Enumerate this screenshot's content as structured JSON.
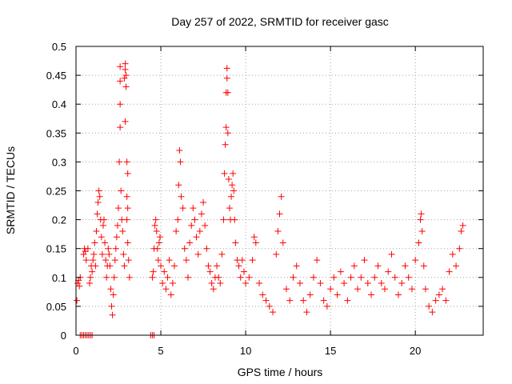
{
  "chart_data": {
    "type": "scatter",
    "title": "Day 257 of 2022, SRMTID for receiver gasc",
    "xlabel": "GPS time / hours",
    "ylabel": "SRMTID / TECUs",
    "xlim": [
      0,
      24
    ],
    "ylim": [
      0,
      0.5
    ],
    "xticks": [
      0,
      5,
      10,
      15,
      20
    ],
    "xtick_labels": [
      "0",
      "5",
      "10",
      "15",
      "20"
    ],
    "yticks": [
      0,
      0.05,
      0.1,
      0.15,
      0.2,
      0.25,
      0.3,
      0.35,
      0.4,
      0.45,
      0.5
    ],
    "ytick_labels": [
      "0",
      "0.05",
      "0.1",
      "0.15",
      "0.2",
      "0.25",
      "0.3",
      "0.35",
      "0.4",
      "0.45",
      "0.5"
    ],
    "grid": true,
    "marker": "+",
    "marker_color": "#ff0000",
    "series": [
      {
        "name": "SRMTID",
        "points": [
          [
            0.05,
            0.06
          ],
          [
            0.1,
            0.09
          ],
          [
            0.15,
            0.095
          ],
          [
            0.2,
            0.085
          ],
          [
            0.25,
            0.1
          ],
          [
            0.25,
            0
          ],
          [
            0.35,
            0
          ],
          [
            0.45,
            0
          ],
          [
            0.55,
            0
          ],
          [
            0.65,
            0
          ],
          [
            0.75,
            0
          ],
          [
            0.85,
            0
          ],
          [
            0.95,
            0
          ],
          [
            0.45,
            0.14
          ],
          [
            0.5,
            0.15
          ],
          [
            0.55,
            0.145
          ],
          [
            0.6,
            0.13
          ],
          [
            0.7,
            0.15
          ],
          [
            0.8,
            0.09
          ],
          [
            0.85,
            0.1
          ],
          [
            0.9,
            0.12
          ],
          [
            0.95,
            0.11
          ],
          [
            1.0,
            0.13
          ],
          [
            1.05,
            0.14
          ],
          [
            1.1,
            0.16
          ],
          [
            1.15,
            0.12
          ],
          [
            1.2,
            0.18
          ],
          [
            1.25,
            0.21
          ],
          [
            1.3,
            0.23
          ],
          [
            1.35,
            0.25
          ],
          [
            1.4,
            0.24
          ],
          [
            1.45,
            0.2
          ],
          [
            1.5,
            0.17
          ],
          [
            1.55,
            0.14
          ],
          [
            1.6,
            0.19
          ],
          [
            1.65,
            0.2
          ],
          [
            1.7,
            0.16
          ],
          [
            1.75,
            0.13
          ],
          [
            1.8,
            0.1
          ],
          [
            1.85,
            0.12
          ],
          [
            1.9,
            0.15
          ],
          [
            1.95,
            0.14
          ],
          [
            2.0,
            0.12
          ],
          [
            2.05,
            0.08
          ],
          [
            2.1,
            0.05
          ],
          [
            2.15,
            0.035
          ],
          [
            2.2,
            0.07
          ],
          [
            2.25,
            0.1
          ],
          [
            2.3,
            0.13
          ],
          [
            2.35,
            0.15
          ],
          [
            2.4,
            0.17
          ],
          [
            2.45,
            0.19
          ],
          [
            2.5,
            0.22
          ],
          [
            2.55,
            0.3
          ],
          [
            2.6,
            0.36
          ],
          [
            2.6,
            0.4
          ],
          [
            2.6,
            0.44
          ],
          [
            2.6,
            0.465
          ],
          [
            2.65,
            0.25
          ],
          [
            2.7,
            0.2
          ],
          [
            2.75,
            0.18
          ],
          [
            2.8,
            0.14
          ],
          [
            2.85,
            0.12
          ],
          [
            2.85,
            0.445
          ],
          [
            2.9,
            0.47
          ],
          [
            2.9,
            0.46
          ],
          [
            2.95,
            0.45
          ],
          [
            2.95,
            0.43
          ],
          [
            2.9,
            0.37
          ],
          [
            3.0,
            0.3
          ],
          [
            3.05,
            0.28
          ],
          [
            3.0,
            0.24
          ],
          [
            3.05,
            0.22
          ],
          [
            3.0,
            0.2
          ],
          [
            3.05,
            0.16
          ],
          [
            3.1,
            0.13
          ],
          [
            3.15,
            0.1
          ],
          [
            4.4,
            0
          ],
          [
            4.5,
            0
          ],
          [
            4.6,
            0
          ],
          [
            4.5,
            0.1
          ],
          [
            4.55,
            0.11
          ],
          [
            4.6,
            0.15
          ],
          [
            4.65,
            0.19
          ],
          [
            4.7,
            0.2
          ],
          [
            4.75,
            0.18
          ],
          [
            4.8,
            0.15
          ],
          [
            4.85,
            0.13
          ],
          [
            4.9,
            0.16
          ],
          [
            4.95,
            0.17
          ],
          [
            5.0,
            0.12
          ],
          [
            5.1,
            0.09
          ],
          [
            5.2,
            0.11
          ],
          [
            5.3,
            0.08
          ],
          [
            5.4,
            0.1
          ],
          [
            5.5,
            0.13
          ],
          [
            5.6,
            0.07
          ],
          [
            5.7,
            0.09
          ],
          [
            5.8,
            0.12
          ],
          [
            5.9,
            0.18
          ],
          [
            6.0,
            0.2
          ],
          [
            6.05,
            0.26
          ],
          [
            6.1,
            0.32
          ],
          [
            6.15,
            0.3
          ],
          [
            6.2,
            0.24
          ],
          [
            6.3,
            0.22
          ],
          [
            6.4,
            0.15
          ],
          [
            6.5,
            0.13
          ],
          [
            6.6,
            0.1
          ],
          [
            6.7,
            0.16
          ],
          [
            6.8,
            0.19
          ],
          [
            6.9,
            0.22
          ],
          [
            7.0,
            0.2
          ],
          [
            7.1,
            0.17
          ],
          [
            7.2,
            0.14
          ],
          [
            7.3,
            0.18
          ],
          [
            7.4,
            0.21
          ],
          [
            7.5,
            0.23
          ],
          [
            7.6,
            0.19
          ],
          [
            7.7,
            0.15
          ],
          [
            7.8,
            0.12
          ],
          [
            7.9,
            0.11
          ],
          [
            8.0,
            0.09
          ],
          [
            8.1,
            0.08
          ],
          [
            8.2,
            0.1
          ],
          [
            8.3,
            0.12
          ],
          [
            8.4,
            0.1
          ],
          [
            8.5,
            0.09
          ],
          [
            8.6,
            0.14
          ],
          [
            8.7,
            0.2
          ],
          [
            8.75,
            0.28
          ],
          [
            8.8,
            0.33
          ],
          [
            8.85,
            0.36
          ],
          [
            8.85,
            0.42
          ],
          [
            8.9,
            0.445
          ],
          [
            8.9,
            0.462
          ],
          [
            8.95,
            0.42
          ],
          [
            8.95,
            0.35
          ],
          [
            9.0,
            0.27
          ],
          [
            9.05,
            0.22
          ],
          [
            9.1,
            0.2
          ],
          [
            9.15,
            0.24
          ],
          [
            9.2,
            0.26
          ],
          [
            9.25,
            0.28
          ],
          [
            9.3,
            0.25
          ],
          [
            9.35,
            0.2
          ],
          [
            9.4,
            0.16
          ],
          [
            9.5,
            0.13
          ],
          [
            9.6,
            0.12
          ],
          [
            9.7,
            0.1
          ],
          [
            9.8,
            0.13
          ],
          [
            9.9,
            0.11
          ],
          [
            10.0,
            0.09
          ],
          [
            10.2,
            0.1
          ],
          [
            10.4,
            0.13
          ],
          [
            10.5,
            0.17
          ],
          [
            10.6,
            0.16
          ],
          [
            10.8,
            0.09
          ],
          [
            11.0,
            0.07
          ],
          [
            11.2,
            0.06
          ],
          [
            11.4,
            0.05
          ],
          [
            11.6,
            0.04
          ],
          [
            11.8,
            0.14
          ],
          [
            11.9,
            0.18
          ],
          [
            12.0,
            0.21
          ],
          [
            12.1,
            0.24
          ],
          [
            12.2,
            0.16
          ],
          [
            12.4,
            0.08
          ],
          [
            12.6,
            0.06
          ],
          [
            12.8,
            0.1
          ],
          [
            13.0,
            0.12
          ],
          [
            13.2,
            0.09
          ],
          [
            13.4,
            0.06
          ],
          [
            13.6,
            0.04
          ],
          [
            13.8,
            0.07
          ],
          [
            14.0,
            0.1
          ],
          [
            14.2,
            0.13
          ],
          [
            14.4,
            0.09
          ],
          [
            14.6,
            0.06
          ],
          [
            14.8,
            0.05
          ],
          [
            15.0,
            0.08
          ],
          [
            15.2,
            0.1
          ],
          [
            15.4,
            0.07
          ],
          [
            15.6,
            0.11
          ],
          [
            15.8,
            0.09
          ],
          [
            16.0,
            0.06
          ],
          [
            16.2,
            0.1
          ],
          [
            16.4,
            0.12
          ],
          [
            16.6,
            0.08
          ],
          [
            16.8,
            0.1
          ],
          [
            17.0,
            0.13
          ],
          [
            17.2,
            0.09
          ],
          [
            17.4,
            0.07
          ],
          [
            17.6,
            0.1
          ],
          [
            17.8,
            0.12
          ],
          [
            18.0,
            0.09
          ],
          [
            18.2,
            0.08
          ],
          [
            18.4,
            0.11
          ],
          [
            18.6,
            0.14
          ],
          [
            18.8,
            0.1
          ],
          [
            19.0,
            0.07
          ],
          [
            19.2,
            0.09
          ],
          [
            19.4,
            0.12
          ],
          [
            19.6,
            0.1
          ],
          [
            19.8,
            0.08
          ],
          [
            20.0,
            0.13
          ],
          [
            20.2,
            0.16
          ],
          [
            20.3,
            0.2
          ],
          [
            20.35,
            0.21
          ],
          [
            20.4,
            0.18
          ],
          [
            20.5,
            0.12
          ],
          [
            20.6,
            0.08
          ],
          [
            20.8,
            0.05
          ],
          [
            21.0,
            0.04
          ],
          [
            21.2,
            0.06
          ],
          [
            21.4,
            0.07
          ],
          [
            21.6,
            0.08
          ],
          [
            21.8,
            0.06
          ],
          [
            22.0,
            0.11
          ],
          [
            22.2,
            0.14
          ],
          [
            22.4,
            0.12
          ],
          [
            22.6,
            0.15
          ],
          [
            22.7,
            0.18
          ],
          [
            22.8,
            0.19
          ]
        ]
      }
    ]
  }
}
